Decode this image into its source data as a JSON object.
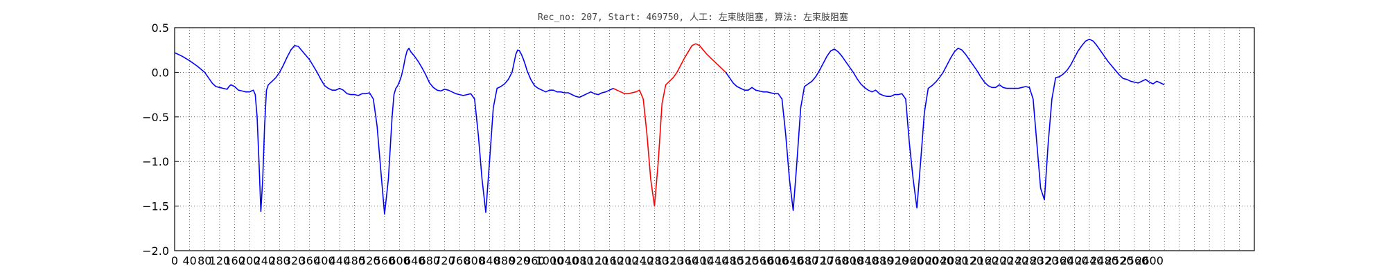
{
  "chart_data": {
    "type": "line",
    "title": "Rec_no: 207, Start: 469750, 人工: 左束肢阻塞, 算法: 左束肢阻塞",
    "xlabel": "",
    "ylabel": "",
    "xlim": [
      0,
      2880
    ],
    "ylim": [
      -2.0,
      0.5
    ],
    "grid": true,
    "x_tick_step": 40,
    "x_tick_label_max": 2600,
    "x_tick_labels": [
      "0",
      "40",
      "80",
      "120",
      "160",
      "200",
      "240",
      "280",
      "320",
      "360",
      "400",
      "440",
      "480",
      "520",
      "560",
      "600",
      "640",
      "680",
      "720",
      "760",
      "800",
      "840",
      "880",
      "920",
      "960",
      "1000",
      "1040",
      "1080",
      "1120",
      "1160",
      "1200",
      "1240",
      "1280",
      "1320",
      "1360",
      "1400",
      "1440",
      "1480",
      "1520",
      "1560",
      "1600",
      "1640",
      "1680",
      "1720",
      "1760",
      "1800",
      "1840",
      "1880",
      "1920",
      "1960",
      "2000",
      "2040",
      "2080",
      "2120",
      "2160",
      "2200",
      "2240",
      "2280",
      "2320",
      "2360",
      "2400",
      "2440",
      "2480",
      "2520",
      "2560",
      "2600"
    ],
    "y_tick_labels": [
      "0.5",
      "0.0",
      "−0.5",
      "−1.0",
      "−1.5",
      "−2.0"
    ],
    "y_ticks": [
      0.5,
      0.0,
      -0.5,
      -1.0,
      -1.5,
      -2.0
    ],
    "series": [
      {
        "color": "#0000ff",
        "x": [
          0,
          20,
          40,
          60,
          80,
          90,
          100,
          110,
          120,
          130,
          140,
          145,
          150,
          160,
          170,
          180,
          190,
          200,
          205,
          210,
          215,
          220,
          225,
          230,
          235,
          240,
          245,
          250,
          255,
          260,
          270,
          280,
          290,
          300,
          310,
          320,
          330,
          340,
          350,
          360,
          370,
          380,
          390,
          400,
          410,
          420,
          430,
          440,
          450,
          460,
          470,
          480,
          490,
          500,
          510,
          520,
          530,
          540,
          550,
          560,
          570,
          580,
          585,
          590,
          595,
          600,
          605,
          610,
          615,
          620,
          625,
          630,
          640,
          650,
          660,
          670,
          680,
          690,
          700,
          710,
          720,
          730,
          740,
          750,
          760,
          770,
          780,
          790,
          800,
          810,
          820,
          830,
          840,
          850,
          860,
          870,
          880,
          890,
          900,
          905,
          910,
          915,
          920,
          925,
          930,
          935,
          940,
          950,
          960,
          970,
          980,
          990,
          1000,
          1010,
          1020,
          1030,
          1040,
          1050,
          1060,
          1070,
          1080,
          1090,
          1100,
          1110,
          1120,
          1130,
          1140,
          1150,
          1160,
          1170
        ],
        "y": [
          0.22,
          0.18,
          0.13,
          0.07,
          0.0,
          -0.06,
          -0.12,
          -0.16,
          -0.17,
          -0.18,
          -0.19,
          -0.16,
          -0.14,
          -0.16,
          -0.2,
          -0.21,
          -0.22,
          -0.22,
          -0.21,
          -0.2,
          -0.25,
          -0.5,
          -1.0,
          -1.56,
          -1.2,
          -0.6,
          -0.2,
          -0.14,
          -0.12,
          -0.1,
          -0.06,
          0.0,
          0.08,
          0.17,
          0.25,
          0.3,
          0.29,
          0.24,
          0.19,
          0.14,
          0.07,
          0.0,
          -0.08,
          -0.15,
          -0.18,
          -0.2,
          -0.2,
          -0.18,
          -0.2,
          -0.24,
          -0.25,
          -0.25,
          -0.26,
          -0.24,
          -0.24,
          -0.23,
          -0.3,
          -0.6,
          -1.1,
          -1.59,
          -1.2,
          -0.5,
          -0.25,
          -0.18,
          -0.15,
          -0.1,
          -0.04,
          0.05,
          0.16,
          0.24,
          0.27,
          0.23,
          0.18,
          0.12,
          0.05,
          -0.03,
          -0.12,
          -0.17,
          -0.2,
          -0.21,
          -0.19,
          -0.2,
          -0.22,
          -0.24,
          -0.25,
          -0.26,
          -0.25,
          -0.24,
          -0.3,
          -0.7,
          -1.2,
          -1.57,
          -1.0,
          -0.4,
          -0.18,
          -0.16,
          -0.13,
          -0.08,
          0.0,
          0.1,
          0.2,
          0.25,
          0.24,
          0.2,
          0.15,
          0.09,
          0.02,
          -0.08,
          -0.15,
          -0.18,
          -0.2,
          -0.22,
          -0.2,
          -0.2,
          -0.22,
          -0.22,
          -0.23,
          -0.23,
          -0.25,
          -0.27,
          -0.28,
          -0.26,
          -0.24,
          -0.22,
          -0.24,
          -0.25,
          -0.23,
          -0.22,
          -0.2,
          -0.18
        ]
      },
      {
        "color": "#ff0000",
        "x": [
          1170,
          1180,
          1190,
          1200,
          1210,
          1220,
          1230,
          1240,
          1250,
          1260,
          1270,
          1280,
          1290,
          1300,
          1310,
          1320,
          1330,
          1340,
          1350,
          1360,
          1370,
          1380,
          1390,
          1400,
          1410,
          1420,
          1430,
          1440,
          1450,
          1460,
          1470
        ],
        "y": [
          -0.18,
          -0.2,
          -0.22,
          -0.24,
          -0.24,
          -0.23,
          -0.22,
          -0.2,
          -0.3,
          -0.7,
          -1.2,
          -1.5,
          -1.0,
          -0.35,
          -0.14,
          -0.1,
          -0.06,
          0.0,
          0.08,
          0.16,
          0.23,
          0.3,
          0.32,
          0.3,
          0.25,
          0.2,
          0.16,
          0.12,
          0.08,
          0.04,
          0.0
        ]
      },
      {
        "color": "#0000ff",
        "x": [
          1470,
          1480,
          1490,
          1500,
          1510,
          1520,
          1530,
          1540,
          1550,
          1560,
          1570,
          1580,
          1590,
          1600,
          1610,
          1620,
          1630,
          1640,
          1650,
          1660,
          1670,
          1680,
          1690,
          1700,
          1710,
          1720,
          1730,
          1740,
          1750,
          1760,
          1770,
          1780,
          1790,
          1800,
          1810,
          1820,
          1830,
          1840,
          1850,
          1860,
          1870,
          1880,
          1890,
          1900,
          1910,
          1920,
          1930,
          1940,
          1950,
          1960,
          1970,
          1980,
          1990,
          2000,
          2010,
          2020,
          2030,
          2040,
          2050,
          2060,
          2070,
          2080,
          2090,
          2100,
          2110,
          2120,
          2130,
          2140,
          2150,
          2160,
          2170,
          2180,
          2190,
          2200,
          2210,
          2220,
          2230,
          2240,
          2250,
          2260,
          2270,
          2280,
          2290,
          2300,
          2310,
          2320,
          2330,
          2340,
          2350,
          2360,
          2370,
          2380,
          2390,
          2400,
          2410,
          2420,
          2430,
          2440,
          2450,
          2460,
          2470,
          2480,
          2490,
          2500,
          2510,
          2520,
          2530,
          2540,
          2550,
          2560,
          2570,
          2580,
          2590,
          2600,
          2610,
          2620,
          2630,
          2640
        ],
        "y": [
          0.0,
          -0.06,
          -0.12,
          -0.16,
          -0.18,
          -0.2,
          -0.2,
          -0.17,
          -0.2,
          -0.21,
          -0.22,
          -0.22,
          -0.23,
          -0.24,
          -0.24,
          -0.3,
          -0.7,
          -1.2,
          -1.55,
          -1.0,
          -0.4,
          -0.16,
          -0.13,
          -0.1,
          -0.05,
          0.02,
          0.1,
          0.18,
          0.24,
          0.26,
          0.23,
          0.18,
          0.12,
          0.06,
          0.0,
          -0.07,
          -0.13,
          -0.17,
          -0.2,
          -0.22,
          -0.2,
          -0.24,
          -0.26,
          -0.27,
          -0.27,
          -0.25,
          -0.25,
          -0.24,
          -0.3,
          -0.8,
          -1.2,
          -1.52,
          -1.0,
          -0.45,
          -0.18,
          -0.15,
          -0.11,
          -0.06,
          0.0,
          0.08,
          0.16,
          0.23,
          0.27,
          0.25,
          0.2,
          0.14,
          0.08,
          0.02,
          -0.05,
          -0.11,
          -0.15,
          -0.17,
          -0.17,
          -0.14,
          -0.17,
          -0.18,
          -0.18,
          -0.18,
          -0.18,
          -0.17,
          -0.16,
          -0.17,
          -0.3,
          -0.8,
          -1.3,
          -1.43,
          -0.8,
          -0.3,
          -0.06,
          -0.05,
          -0.02,
          0.02,
          0.08,
          0.16,
          0.24,
          0.3,
          0.35,
          0.37,
          0.35,
          0.3,
          0.24,
          0.18,
          0.12,
          0.07,
          0.02,
          -0.03,
          -0.07,
          -0.08,
          -0.1,
          -0.11,
          -0.12,
          -0.1,
          -0.08,
          -0.11,
          -0.13,
          -0.1,
          -0.12,
          -0.14
        ]
      }
    ]
  }
}
